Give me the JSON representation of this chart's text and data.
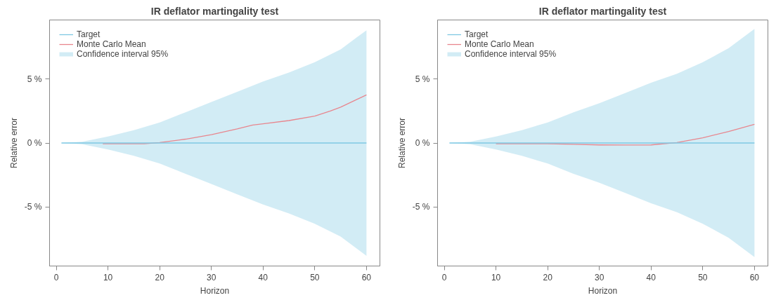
{
  "chart_data": [
    {
      "type": "line",
      "title": "IR deflator martingality test",
      "xlabel": "Horizon",
      "ylabel": "Relative error",
      "xlim": [
        -1.3,
        62.6
      ],
      "ylim": [
        -9.6,
        9.6
      ],
      "xticks": [
        0,
        10,
        20,
        30,
        40,
        50,
        60
      ],
      "yticks": [
        {
          "value": -5,
          "label": "-5 %"
        },
        {
          "value": 0,
          "label": "0 %"
        },
        {
          "value": 5,
          "label": "5 %"
        }
      ],
      "grid": false,
      "legend": "top left",
      "annotations": [
        "Confidence interval 95%"
      ],
      "series": [
        {
          "name": "Target",
          "color": "#7ec8e3",
          "x": [
            1,
            5,
            10,
            15,
            20,
            25,
            30,
            35,
            40,
            45,
            50,
            55,
            60
          ],
          "values": [
            0,
            0,
            0,
            0,
            0,
            0,
            0,
            0,
            0,
            0,
            0,
            0,
            0
          ],
          "lower": [
            0,
            -0.1,
            -0.5,
            -1.0,
            -1.6,
            -2.4,
            -3.2,
            -4.0,
            -4.8,
            -5.5,
            -6.3,
            -7.3,
            -8.8
          ],
          "upper": [
            0,
            0.1,
            0.5,
            1.0,
            1.6,
            2.4,
            3.2,
            4.0,
            4.8,
            5.5,
            6.3,
            7.3,
            8.8
          ]
        },
        {
          "name": "Monte Carlo Mean",
          "color": "#e8868e",
          "x": [
            9,
            17,
            20,
            25,
            30,
            35,
            38,
            40,
            45,
            50,
            53,
            55,
            60
          ],
          "values": [
            -0.06,
            -0.06,
            0.03,
            0.3,
            0.65,
            1.1,
            1.4,
            1.5,
            1.75,
            2.1,
            2.5,
            2.8,
            3.75
          ]
        }
      ]
    },
    {
      "type": "line",
      "title": "IR deflator martingality test",
      "xlabel": "Horizon",
      "ylabel": "Relative error",
      "xlim": [
        -1.3,
        62.6
      ],
      "ylim": [
        -9.6,
        9.6
      ],
      "xticks": [
        0,
        10,
        20,
        30,
        40,
        50,
        60
      ],
      "yticks": [
        {
          "value": -5,
          "label": "-5 %"
        },
        {
          "value": 0,
          "label": "0 %"
        },
        {
          "value": 5,
          "label": "5 %"
        }
      ],
      "grid": false,
      "legend": "top left",
      "annotations": [
        "Confidence interval 95%"
      ],
      "series": [
        {
          "name": "Target",
          "color": "#7ec8e3",
          "x": [
            1,
            5,
            10,
            15,
            20,
            25,
            30,
            35,
            40,
            45,
            50,
            55,
            60
          ],
          "values": [
            0,
            0,
            0,
            0,
            0,
            0,
            0,
            0,
            0,
            0,
            0,
            0,
            0
          ],
          "lower": [
            0,
            -0.1,
            -0.5,
            -1.0,
            -1.6,
            -2.4,
            -3.1,
            -3.9,
            -4.7,
            -5.4,
            -6.3,
            -7.4,
            -8.9
          ],
          "upper": [
            0,
            0.1,
            0.5,
            1.0,
            1.6,
            2.4,
            3.1,
            3.9,
            4.7,
            5.4,
            6.3,
            7.4,
            8.9
          ]
        },
        {
          "name": "Monte Carlo Mean",
          "color": "#e8868e",
          "x": [
            10,
            20,
            25,
            30,
            35,
            40,
            45,
            50,
            55,
            60
          ],
          "values": [
            -0.06,
            -0.06,
            -0.1,
            -0.15,
            -0.16,
            -0.15,
            0.03,
            0.4,
            0.9,
            1.45
          ]
        }
      ]
    }
  ]
}
